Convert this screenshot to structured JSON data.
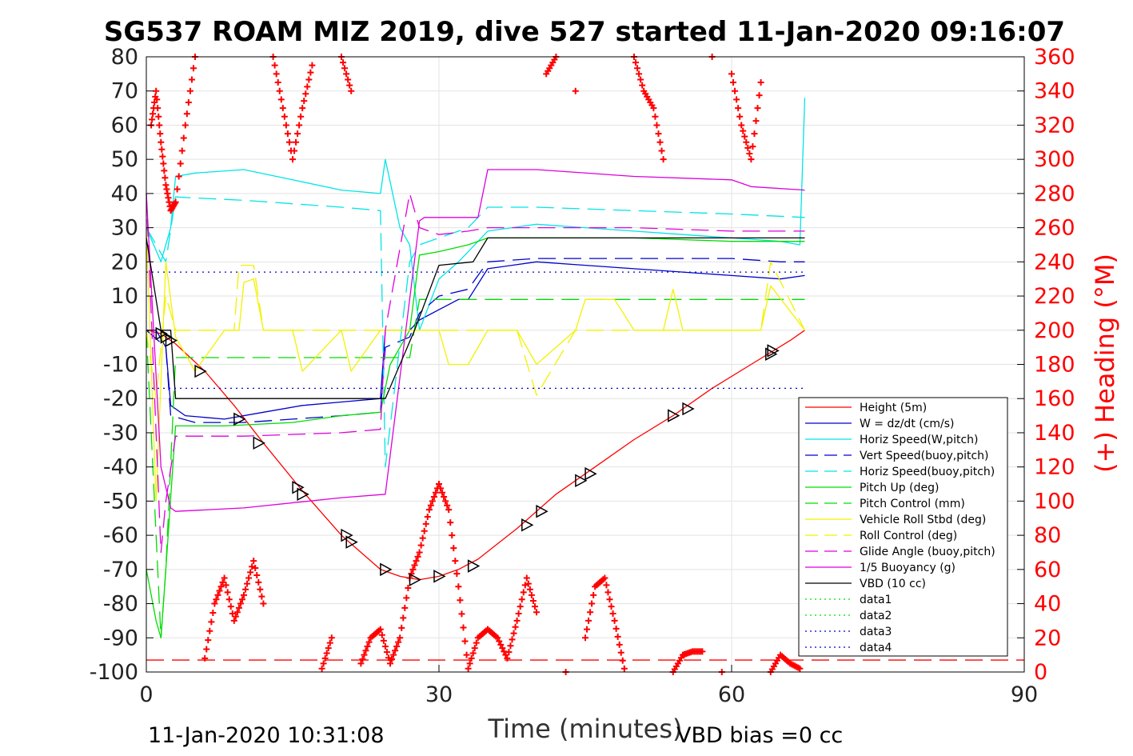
{
  "chart_data": {
    "type": "line",
    "title": "SG537 ROAM MIZ 2019, dive 527 started 11-Jan-2020 09:16:07",
    "xlabel": "Time (minutes)",
    "ylabel": "",
    "y2label": "(+) Heading (°M)",
    "xlim": [
      0,
      90
    ],
    "ylim": [
      -100,
      80
    ],
    "y2lim": [
      0,
      360
    ],
    "x_ticks": [
      0,
      30,
      60,
      90
    ],
    "y_ticks": [
      -100,
      -90,
      -80,
      -70,
      -60,
      -50,
      -40,
      -30,
      -20,
      -10,
      0,
      10,
      20,
      30,
      40,
      50,
      60,
      70,
      80
    ],
    "y2_ticks": [
      0,
      20,
      40,
      60,
      80,
      100,
      120,
      140,
      160,
      180,
      200,
      220,
      240,
      260,
      280,
      300,
      320,
      340,
      360
    ],
    "grid": true,
    "legend_position": "bottom-right",
    "footer_left": "11-Jan-2020 10:31:08",
    "footer_right": "VBD bias =0 cc",
    "colors": {
      "red": "#ff0000",
      "blue": "#0000cc",
      "cyan": "#00e5e5",
      "green": "#00dd00",
      "yellow": "#f2f200",
      "magenta": "#dd00dd",
      "black": "#000000"
    },
    "series": [
      {
        "name": "Height (5m)",
        "color": "#ff0000",
        "style": "solid",
        "axis": "left",
        "x": [
          0,
          1.5,
          3,
          6,
          9,
          12,
          16,
          20,
          24,
          26,
          28,
          30,
          32,
          34,
          38,
          42,
          46,
          50,
          54,
          58,
          62,
          66,
          67.5
        ],
        "y": [
          0,
          -1,
          -4,
          -12,
          -22,
          -33,
          -47,
          -60,
          -70,
          -72,
          -73,
          -72,
          -70,
          -67,
          -58,
          -48,
          -40,
          -32,
          -25,
          -17,
          -10,
          -3,
          0
        ]
      },
      {
        "name": "W = dz/dt (cm/s)",
        "color": "#0000cc",
        "style": "solid",
        "axis": "left",
        "x": [
          0,
          1,
          2,
          2.5,
          4,
          8,
          12,
          16,
          20,
          24,
          24.5,
          27,
          28,
          30,
          32,
          33,
          35,
          40,
          45,
          50,
          55,
          60,
          65,
          67.5
        ],
        "y": [
          0,
          0,
          -5,
          -22,
          -25,
          -26,
          -24,
          -22,
          -21,
          -20,
          0,
          0,
          3,
          6,
          9,
          9,
          18,
          20,
          19,
          18,
          17,
          16,
          15,
          16
        ]
      },
      {
        "name": "Horiz Speed(W,pitch)",
        "color": "#00e5e5",
        "style": "solid",
        "axis": "left",
        "x": [
          0,
          1.5,
          2.5,
          3,
          5,
          10,
          15,
          20,
          24,
          24.5,
          26,
          27,
          28,
          30,
          32,
          35,
          40,
          45,
          50,
          55,
          60,
          65,
          67,
          67.5
        ],
        "y": [
          30,
          20,
          30,
          45,
          46,
          47,
          44,
          41,
          40,
          50,
          30,
          25,
          0,
          15,
          20,
          29,
          31,
          30,
          29,
          28,
          27,
          26,
          25,
          68
        ]
      },
      {
        "name": "Vert Speed(buoy,pitch)",
        "color": "#0000cc",
        "style": "dashed",
        "axis": "left",
        "x": [
          0,
          2,
          2.5,
          5,
          10,
          15,
          20,
          24,
          24.5,
          27,
          28,
          30,
          33,
          35,
          40,
          45,
          50,
          55,
          60,
          65,
          67.5
        ],
        "y": [
          0,
          -5,
          -25,
          -27,
          -27,
          -26,
          -25,
          -24,
          -5,
          -2,
          5,
          10,
          12,
          20,
          21,
          21,
          21,
          21,
          21,
          20,
          20
        ]
      },
      {
        "name": "Horiz Speed(buoy,pitch)",
        "color": "#00e5e5",
        "style": "dashed",
        "axis": "left",
        "x": [
          0,
          2,
          3,
          10,
          20,
          24,
          24.5,
          27,
          28,
          30,
          33,
          35,
          40,
          50,
          60,
          67.5
        ],
        "y": [
          30,
          20,
          39,
          38,
          36,
          35,
          -40,
          20,
          25,
          27,
          30,
          36,
          36,
          35,
          34,
          33
        ]
      },
      {
        "name": "Pitch Up (deg)",
        "color": "#00dd00",
        "style": "solid",
        "axis": "left",
        "x": [
          0,
          1,
          1.5,
          2,
          3,
          8,
          15,
          20,
          24,
          25,
          27,
          28,
          30,
          33,
          35,
          40,
          50,
          60,
          67.5
        ],
        "y": [
          -70,
          -85,
          -90,
          -70,
          -28,
          -28,
          -27,
          -25,
          -24,
          -10,
          0,
          22,
          23,
          25,
          27,
          27,
          27,
          26,
          26
        ]
      },
      {
        "name": "Pitch Control (mm)",
        "color": "#00dd00",
        "style": "dashed",
        "axis": "left",
        "x": [
          0,
          1.5,
          2,
          3,
          10,
          20,
          24,
          27,
          28,
          30,
          33,
          40,
          50,
          60,
          67.5
        ],
        "y": [
          0,
          -90,
          -70,
          -8,
          -8,
          -8,
          -8,
          -8,
          9,
          9,
          9,
          9,
          9,
          9,
          9
        ]
      },
      {
        "name": "Vehicle Roll Stbd (deg)",
        "color": "#f2f200",
        "style": "solid",
        "axis": "left",
        "x": [
          0,
          1,
          2,
          3,
          5,
          8,
          9.5,
          10,
          11,
          12,
          15,
          16,
          20,
          21,
          24,
          27,
          30,
          31,
          33,
          35,
          38,
          40,
          44,
          45,
          48,
          50,
          53,
          54,
          55,
          58,
          63,
          64,
          67.5
        ],
        "y": [
          30,
          -50,
          20,
          -2,
          -12,
          0,
          0,
          14,
          15,
          0,
          0,
          -12,
          0,
          -12,
          0,
          0,
          0,
          -10,
          -10,
          0,
          0,
          -10,
          0,
          9,
          9,
          0,
          0,
          12,
          0,
          0,
          0,
          13,
          0
        ]
      },
      {
        "name": "Roll Control (deg)",
        "color": "#f2f200",
        "style": "dashed",
        "axis": "left",
        "x": [
          0,
          1,
          2,
          3,
          9,
          9.5,
          10,
          11,
          12,
          16,
          20,
          24,
          27,
          30,
          33,
          38,
          40,
          44,
          50,
          55,
          60,
          63,
          64,
          67.5
        ],
        "y": [
          0,
          -20,
          10,
          0,
          0,
          19,
          19,
          19,
          0,
          0,
          0,
          0,
          0,
          0,
          0,
          0,
          -19,
          0,
          0,
          0,
          0,
          0,
          20,
          0
        ]
      },
      {
        "name": "Glide Angle (buoy,pitch)",
        "color": "#dd00dd",
        "style": "dashed",
        "axis": "left",
        "x": [
          0,
          1.5,
          2,
          3,
          10,
          20,
          24,
          24.5,
          27,
          28,
          30,
          33,
          35,
          40,
          50,
          60,
          67.5
        ],
        "y": [
          40,
          -65,
          -50,
          -31,
          -31,
          -30,
          -29,
          0,
          40,
          30,
          28,
          29,
          30,
          30,
          30,
          29,
          29
        ]
      },
      {
        "name": "1/5 Buoyancy (g)",
        "color": "#dd00dd",
        "style": "solid",
        "axis": "left",
        "x": [
          0,
          1.5,
          2.5,
          3,
          10,
          20,
          24.5,
          28,
          28.5,
          30,
          34,
          35,
          40,
          50,
          60,
          62,
          67.5
        ],
        "y": [
          40,
          -40,
          -52,
          -53,
          -52,
          -49,
          -48,
          32,
          33,
          33,
          33,
          47,
          47,
          45,
          44,
          42,
          41
        ]
      },
      {
        "name": "VBD (10 cc)",
        "color": "#000000",
        "style": "solid",
        "axis": "left",
        "x": [
          0,
          1.5,
          2.5,
          3,
          10,
          20,
          24.5,
          27.5,
          30,
          33.5,
          35,
          40,
          50,
          60,
          67.5
        ],
        "y": [
          27,
          0,
          0,
          -20,
          -20,
          -20,
          -20,
          0,
          19,
          20,
          27,
          27,
          27,
          27,
          27
        ]
      },
      {
        "name": "data1",
        "color": "#00dd00",
        "style": "dotted",
        "axis": "left",
        "x": [],
        "y": []
      },
      {
        "name": "data2",
        "color": "#00dd00",
        "style": "dotted",
        "axis": "left",
        "x": [],
        "y": []
      },
      {
        "name": "data3",
        "color": "#0000cc",
        "style": "dotted",
        "axis": "left",
        "x": [
          0,
          67.5
        ],
        "y": [
          17,
          17
        ]
      },
      {
        "name": "data4",
        "color": "#0000cc",
        "style": "dotted",
        "axis": "left",
        "x": [
          0,
          67.5
        ],
        "y": [
          -17,
          -17
        ]
      }
    ],
    "heading": {
      "color": "#ff0000",
      "marker": "+",
      "axis": "right",
      "x": [
        0.5,
        1,
        1.5,
        2,
        2.5,
        3,
        4,
        5,
        6,
        7,
        8,
        9,
        10,
        11,
        12,
        13,
        14,
        15,
        16,
        17,
        18,
        19,
        20,
        21,
        22,
        23,
        24,
        25,
        26,
        27,
        28,
        29,
        30,
        31,
        32,
        33,
        34,
        35,
        36,
        37,
        38,
        39,
        40,
        41,
        42,
        43,
        44,
        45,
        46,
        47,
        48,
        49,
        50,
        51,
        52,
        53,
        54,
        55,
        56,
        57,
        58,
        59,
        60,
        61,
        62,
        63,
        64,
        65,
        66,
        67
      ],
      "y": [
        320,
        340,
        310,
        285,
        270,
        275,
        320,
        360,
        8,
        40,
        55,
        30,
        45,
        65,
        40,
        360,
        330,
        300,
        330,
        355,
        2,
        20,
        360,
        340,
        5,
        20,
        25,
        5,
        20,
        55,
        70,
        95,
        110,
        95,
        50,
        2,
        20,
        25,
        20,
        8,
        30,
        55,
        35,
        350,
        360,
        0,
        340,
        20,
        50,
        55,
        30,
        2,
        360,
        340,
        330,
        300,
        0,
        10,
        12,
        12,
        360,
        0,
        350,
        320,
        300,
        345,
        0,
        10,
        5,
        2
      ]
    },
    "reference_line": {
      "axis": "right",
      "value": 7,
      "color": "#ff0000",
      "style": "dashed"
    },
    "markers": {
      "description": "black triangle markers along Height trace",
      "x": [
        1.5,
        2,
        2.5,
        5.5,
        9.5,
        11.5,
        15.5,
        16,
        20.5,
        21,
        24.5,
        27.5,
        30,
        33.5,
        39,
        40.5,
        44.5,
        45.5,
        54,
        55.5,
        64,
        64.2
      ],
      "y": [
        -1,
        -2,
        -3,
        -12,
        -26,
        -33,
        -46,
        -48,
        -60,
        -62,
        -70,
        -73,
        -72,
        -69,
        -57,
        -53,
        -44,
        -42,
        -25,
        -23,
        -7,
        -6
      ]
    }
  }
}
